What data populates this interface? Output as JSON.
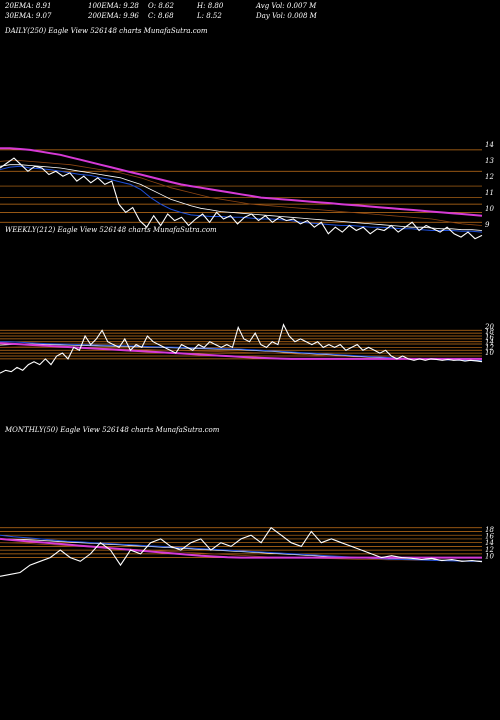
{
  "header": {
    "ema20": "20EMA: 8.91",
    "ema100": "100EMA: 9.28",
    "open": "O: 8.62",
    "high": "H: 8.80",
    "avg_vol": "Avg Vol: 0.007 M",
    "ema30": "30EMA: 9.07",
    "ema200": "200EMA: 9.96",
    "close": "C: 8.68",
    "low": "L: 8.52",
    "day_vol": "Day Vol: 0.008 M"
  },
  "colors": {
    "background": "#000000",
    "price": "#ffffff",
    "ema_short": "#1f4fd8",
    "ema_mid": "#ffffff",
    "ema_long": "#8b4513",
    "ema_200": "#d63ad6",
    "level_lines": "#c8741a"
  },
  "chart_data": [
    {
      "type": "line",
      "title": "DAILY(250) Eagle  View  526148 charts MunafaSutra.com",
      "y_ticks": [
        "14",
        "13",
        "12",
        "11",
        "10",
        "9"
      ],
      "ylim": [
        8.3,
        14.5
      ],
      "levels": [
        13.9,
        12.6,
        11.7,
        11.0,
        10.6,
        10.1,
        9.5
      ],
      "series": [
        {
          "role": "price",
          "values": [
            12.8,
            13.1,
            13.4,
            13.0,
            12.6,
            12.9,
            12.8,
            12.4,
            12.6,
            12.3,
            12.5,
            12.0,
            12.3,
            11.9,
            12.2,
            11.8,
            12.0,
            10.6,
            10.1,
            10.4,
            9.6,
            9.2,
            9.9,
            9.3,
            10.0,
            9.6,
            9.8,
            9.3,
            9.7,
            10.0,
            9.5,
            10.1,
            9.7,
            9.9,
            9.4,
            9.8,
            10.0,
            9.6,
            9.9,
            9.5,
            9.8,
            9.6,
            9.7,
            9.4,
            9.6,
            9.2,
            9.5,
            8.8,
            9.2,
            8.9,
            9.3,
            9.0,
            9.2,
            8.8,
            9.1,
            9.0,
            9.3,
            8.9,
            9.2,
            9.5,
            9.0,
            9.3,
            9.1,
            8.9,
            9.2,
            8.8,
            8.6,
            8.9,
            8.5,
            8.7
          ]
        },
        {
          "role": "ema_short",
          "values": [
            12.7,
            12.85,
            12.9,
            12.8,
            12.75,
            12.7,
            12.6,
            12.5,
            12.4,
            12.35,
            12.2,
            12.1,
            11.95,
            11.8,
            11.5,
            11.0,
            10.6,
            10.3,
            10.1,
            9.95,
            9.9,
            9.85,
            9.85,
            9.8,
            9.8,
            9.75,
            9.7,
            9.7,
            9.65,
            9.6,
            9.5,
            9.45,
            9.4,
            9.35,
            9.3,
            9.3,
            9.25,
            9.2,
            9.2,
            9.15,
            9.1,
            9.1,
            9.05,
            9.0,
            9.0,
            9.0,
            8.95,
            8.95,
            8.9
          ]
        },
        {
          "role": "ema_mid",
          "values": [
            12.9,
            13.0,
            13.0,
            12.95,
            12.9,
            12.85,
            12.8,
            12.7,
            12.6,
            12.5,
            12.4,
            12.3,
            12.2,
            12.0,
            11.8,
            11.5,
            11.2,
            10.9,
            10.7,
            10.5,
            10.35,
            10.25,
            10.15,
            10.1,
            10.05,
            10.0,
            9.95,
            9.9,
            9.85,
            9.8,
            9.75,
            9.7,
            9.65,
            9.6,
            9.55,
            9.5,
            9.45,
            9.4,
            9.35,
            9.3,
            9.25,
            9.2,
            9.2,
            9.15,
            9.1,
            9.1,
            9.05,
            9.05,
            9.0
          ]
        },
        {
          "role": "ema_long",
          "values": [
            13.2,
            13.25,
            13.25,
            13.2,
            13.15,
            13.1,
            13.05,
            13.0,
            12.9,
            12.8,
            12.7,
            12.6,
            12.5,
            12.35,
            12.2,
            12.0,
            11.8,
            11.6,
            11.45,
            11.3,
            11.15,
            11.0,
            10.9,
            10.8,
            10.7,
            10.6,
            10.55,
            10.5,
            10.45,
            10.4,
            10.35,
            10.3,
            10.25,
            10.2,
            10.15,
            10.1,
            10.05,
            10.0,
            9.95,
            9.9,
            9.85,
            9.8,
            9.75,
            9.7,
            9.6,
            9.5,
            9.4,
            9.35,
            9.3
          ]
        },
        {
          "role": "ema_200",
          "values": [
            14.0,
            14.0,
            13.95,
            13.9,
            13.8,
            13.7,
            13.6,
            13.45,
            13.3,
            13.15,
            13.0,
            12.85,
            12.7,
            12.55,
            12.4,
            12.25,
            12.1,
            11.95,
            11.8,
            11.7,
            11.6,
            11.5,
            11.4,
            11.3,
            11.2,
            11.1,
            11.0,
            10.95,
            10.9,
            10.85,
            10.8,
            10.75,
            10.7,
            10.65,
            10.6,
            10.55,
            10.5,
            10.45,
            10.4,
            10.35,
            10.3,
            10.25,
            10.2,
            10.15,
            10.1,
            10.05,
            10.0,
            9.95,
            9.9
          ]
        }
      ]
    },
    {
      "type": "line",
      "title": "WEEKLY(212) Eagle  View  526148 charts MunafaSutra.com",
      "y_ticks": [
        "20",
        "18",
        "16",
        "14",
        "12",
        "10"
      ],
      "ylim": [
        4.0,
        21.5
      ],
      "levels": [
        20.0,
        19.0,
        18.0,
        17.0,
        16.0,
        15.2,
        14.0,
        13.0,
        12.0,
        11.0,
        10.0
      ],
      "series": [
        {
          "role": "price",
          "values": [
            5,
            6,
            5.5,
            7,
            6,
            8,
            9,
            8,
            10,
            8,
            11,
            12,
            10,
            14,
            13,
            18,
            15,
            17,
            20,
            16,
            15,
            14,
            17,
            13,
            15,
            14,
            18,
            16,
            15,
            14,
            13,
            12,
            15,
            14,
            13,
            15,
            14,
            16,
            15,
            14,
            15,
            14,
            21,
            17,
            16,
            19,
            15,
            14,
            16,
            15,
            22,
            18,
            16,
            17,
            16,
            15,
            16,
            14,
            15,
            14,
            15,
            13,
            14,
            15,
            13,
            14,
            13,
            12,
            13,
            11,
            10,
            11,
            10,
            9.5,
            10,
            9.5,
            10,
            9.8,
            9.5,
            9.8,
            9.5,
            9.6,
            9.2,
            9.5,
            9.3,
            9.0
          ]
        },
        {
          "role": "ema_short",
          "values": [
            16,
            16,
            15.8,
            15.6,
            15.4,
            15.3,
            15.2,
            15.1,
            15.0,
            14.9,
            14.8,
            14.7,
            14.6,
            14.5,
            14.4,
            14.3,
            14.2,
            14.1,
            14.0,
            13.9,
            13.8,
            13.7,
            13.6,
            13.5,
            13.4,
            13.2,
            13.0,
            12.8,
            12.6,
            12.4,
            12.2,
            12.0,
            11.8,
            11.6,
            11.4,
            11.2,
            11.0,
            10.8,
            10.6,
            10.4,
            10.2,
            10.0,
            9.9,
            9.8,
            9.7,
            9.6,
            9.5,
            9.4,
            9.3
          ]
        },
        {
          "role": "ema_mid",
          "values": [
            14.8,
            15.0,
            15.2,
            15.2,
            15.1,
            15.0,
            14.9,
            14.8,
            14.7,
            14.6,
            14.5,
            14.45,
            14.4,
            14.3,
            14.2,
            14.1,
            14.0,
            13.9,
            13.8,
            13.7,
            13.6,
            13.5,
            13.4,
            13.3,
            13.2,
            13.0,
            12.8,
            12.6,
            12.4,
            12.2,
            12.0,
            11.8,
            11.6,
            11.4,
            11.2,
            11.0,
            10.8,
            10.6,
            10.4,
            10.3,
            10.2,
            10.1,
            10.0,
            9.9,
            9.8,
            9.7,
            9.6,
            9.5,
            9.4
          ]
        },
        {
          "role": "ema_long",
          "values": [
            14.0,
            14.1,
            14.2,
            14.2,
            14.15,
            14.1,
            14.0,
            13.95,
            13.9,
            13.8,
            13.7,
            13.6,
            13.5,
            13.4,
            13.3,
            13.2,
            13.1,
            13.0,
            12.9,
            12.8,
            12.7,
            12.6,
            12.5,
            12.4,
            12.3,
            12.2,
            12.1,
            12.0,
            11.9,
            11.8,
            11.6,
            11.4,
            11.2,
            11.0,
            10.9,
            10.8,
            10.7,
            10.6,
            10.5,
            10.4,
            10.3,
            10.2,
            10.15,
            10.1,
            10.05,
            10.0,
            9.95,
            9.9,
            9.85
          ]
        },
        {
          "role": "ema_200",
          "values": [
            15.5,
            15.3,
            15.1,
            14.9,
            14.7,
            14.5,
            14.3,
            14.1,
            13.9,
            13.7,
            13.5,
            13.3,
            13.1,
            12.9,
            12.7,
            12.5,
            12.3,
            12.1,
            11.9,
            11.7,
            11.5,
            11.3,
            11.1,
            10.9,
            10.7,
            10.5,
            10.35,
            10.2,
            10.1,
            10.0,
            10.0,
            10.0,
            10.0,
            10.0,
            10.0,
            10.0,
            10.0,
            10.0,
            10.0,
            10.0,
            10.0,
            10.0,
            10.0,
            10.0,
            10.0,
            10.0,
            10.0,
            10.0,
            10.0
          ]
        }
      ]
    },
    {
      "type": "line",
      "title": "MONTHLY(50) Eagle  View  526148 charts MunafaSutra.com",
      "y_ticks": [
        "18",
        "16",
        "14",
        "12",
        "10"
      ],
      "ylim": [
        4.0,
        19.0
      ],
      "levels": [
        18.0,
        17.0,
        16.0,
        15.0,
        14.0,
        13.0,
        12.0,
        11.0,
        10.0
      ],
      "series": [
        {
          "role": "price",
          "values": [
            5,
            5.5,
            6,
            8,
            9,
            10,
            12,
            10,
            9,
            11,
            14,
            12,
            8,
            12,
            11,
            14,
            15,
            13,
            12,
            14,
            15,
            12,
            14,
            13,
            15,
            16,
            14,
            18,
            16,
            14,
            13,
            17,
            14,
            15,
            14,
            13,
            12,
            11,
            10,
            10.5,
            10,
            9.8,
            9.5,
            9.8,
            9.2,
            9.5,
            9.0,
            9.2,
            8.9
          ]
        },
        {
          "role": "ema_short",
          "values": [
            16,
            15.6,
            15.3,
            15.0,
            14.7,
            14.4,
            14.2,
            14.0,
            13.8,
            13.6,
            13.4,
            13.2,
            13.0,
            12.8,
            12.6,
            12.4,
            12.2,
            12.0,
            11.8,
            11.6,
            11.4,
            11.2,
            11.0,
            10.8,
            10.6,
            10.4,
            10.2,
            10.0,
            9.8,
            9.6,
            9.5,
            9.4,
            9.3,
            9.2,
            9.1,
            9.0,
            9.0
          ]
        },
        {
          "role": "ema_mid",
          "values": [
            15.0,
            14.9,
            14.8,
            14.6,
            14.4,
            14.2,
            14.0,
            13.8,
            13.6,
            13.4,
            13.2,
            13.0,
            12.8,
            12.6,
            12.4,
            12.2,
            12.0,
            11.8,
            11.6,
            11.4,
            11.2,
            11.0,
            10.8,
            10.6,
            10.4,
            10.2,
            10.0,
            9.9,
            9.8,
            9.7,
            9.6,
            9.5,
            9.4,
            9.3,
            9.2,
            9.1,
            9.0
          ]
        },
        {
          "role": "ema_long",
          "values": [
            14.0,
            13.9,
            13.8,
            13.6,
            13.4,
            13.2,
            13.0,
            12.8,
            12.6,
            12.4,
            12.2,
            12.0,
            11.8,
            11.6,
            11.4,
            11.2,
            11.0,
            10.8,
            10.6,
            10.4,
            10.2,
            10.1,
            10.0,
            9.9,
            9.8,
            9.7,
            9.6,
            9.5,
            9.5,
            9.4,
            9.4,
            9.3,
            9.3,
            9.2,
            9.2,
            9.1,
            9.1
          ]
        },
        {
          "role": "ema_200",
          "values": [
            15.0,
            14.7,
            14.4,
            14.1,
            13.8,
            13.5,
            13.2,
            12.9,
            12.6,
            12.3,
            12.0,
            11.7,
            11.4,
            11.1,
            10.8,
            10.5,
            10.3,
            10.1,
            10.0,
            10.0,
            10.0,
            10.0,
            10.0,
            10.0,
            10.0,
            10.0,
            10.0,
            10.0,
            10.0,
            10.0,
            10.0,
            10.0,
            10.0,
            10.0,
            10.0,
            10.0,
            10.0
          ]
        }
      ]
    }
  ]
}
